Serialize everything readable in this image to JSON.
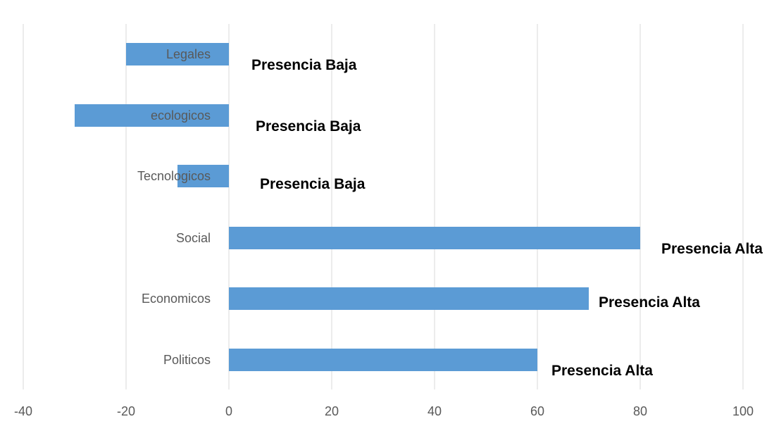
{
  "chart_data": {
    "type": "bar",
    "orientation": "horizontal",
    "categories": [
      "Politicos",
      "Economicos",
      "Social",
      "Tecnologicos",
      "ecologicos",
      "Legales"
    ],
    "values": [
      60,
      70,
      80,
      -10,
      -30,
      -20
    ],
    "annotations": [
      "Presencia Alta",
      "Presencia Alta",
      "Presencia Alta",
      "Presencia Baja",
      "Presencia Baja",
      "Presencia Baja"
    ],
    "x_ticks": [
      "-40",
      "-20",
      "0",
      "20",
      "40",
      "60",
      "80",
      "100"
    ],
    "xlim": [
      -40,
      100
    ],
    "grid": true,
    "legend": "none",
    "bar_color": "#5b9bd5",
    "title": "",
    "xlabel": "",
    "ylabel": ""
  }
}
